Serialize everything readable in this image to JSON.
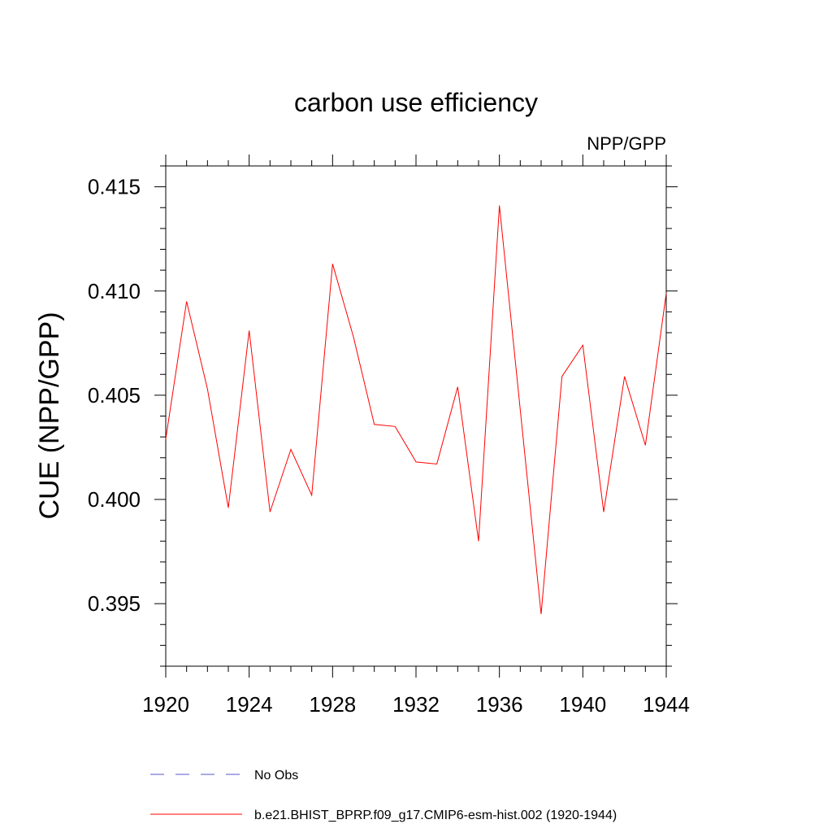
{
  "chart_data": {
    "type": "line",
    "title": "carbon use efficiency",
    "subtitle": "NPP/GPP",
    "xlabel": "",
    "ylabel": "CUE  (NPP/GPP)",
    "xlim": [
      1920,
      1944
    ],
    "ylim": [
      0.392,
      0.416
    ],
    "x_ticks": [
      1920,
      1924,
      1928,
      1932,
      1936,
      1940,
      1944
    ],
    "x_tick_labels": [
      "1920",
      "1924",
      "1928",
      "1932",
      "1936",
      "1940",
      "1944"
    ],
    "y_ticks": [
      0.395,
      0.4,
      0.405,
      0.41,
      0.415
    ],
    "y_tick_labels": [
      "0.395",
      "0.400",
      "0.405",
      "0.410",
      "0.415"
    ],
    "x_minor_step": 1,
    "y_minor_step": 0.001,
    "grid": false,
    "series": [
      {
        "name": "b.e21.BHIST_BPRP.f09_g17.CMIP6-esm-hist.002 (1920-1944)",
        "color": "#ff0000",
        "dash": "solid",
        "x": [
          1920,
          1921,
          1922,
          1923,
          1924,
          1925,
          1926,
          1927,
          1928,
          1929,
          1930,
          1931,
          1932,
          1933,
          1934,
          1935,
          1936,
          1937,
          1938,
          1939,
          1940,
          1941,
          1942,
          1943,
          1944
        ],
        "values": [
          0.4029,
          0.4095,
          0.4053,
          0.3996,
          0.4081,
          0.3994,
          0.4024,
          0.4002,
          0.4113,
          0.4078,
          0.4036,
          0.4035,
          0.4018,
          0.4017,
          0.4054,
          0.398,
          0.4141,
          0.4043,
          0.3945,
          0.4059,
          0.4074,
          0.3994,
          0.4059,
          0.4026,
          0.4099
        ]
      }
    ],
    "legend": [
      {
        "label": "No Obs",
        "color": "#5555cc",
        "dash": "dashed"
      },
      {
        "label": "b.e21.BHIST_BPRP.f09_g17.CMIP6-esm-hist.002 (1920-1944)",
        "color": "#ff0000",
        "dash": "solid"
      }
    ],
    "legend_position": "bottom"
  }
}
